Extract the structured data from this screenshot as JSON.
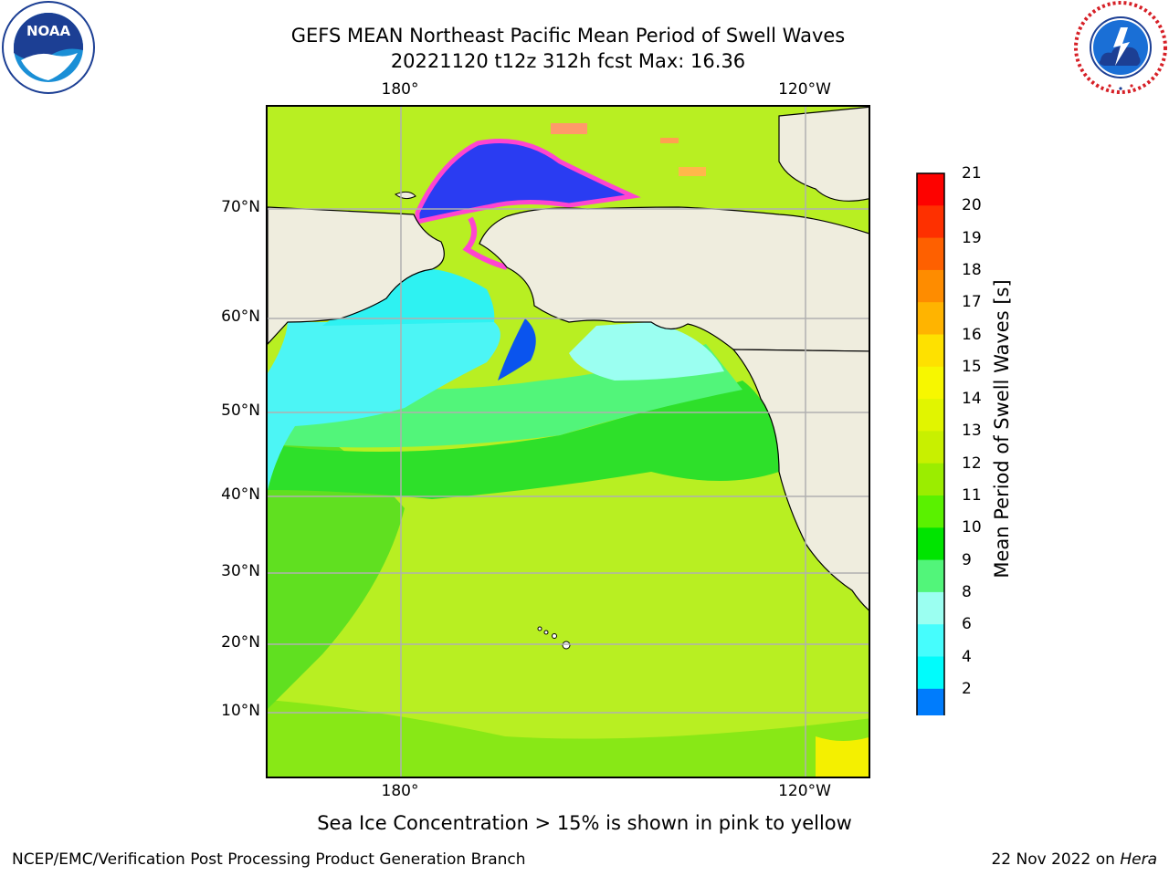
{
  "title": {
    "line1": "GEFS MEAN Northeast Pacific Mean Period of Swell Waves",
    "line2": "20221120 t12z 312h fcst   Max: 16.36"
  },
  "map": {
    "lon_labels_top": [
      "180°",
      "120°W"
    ],
    "lon_labels_bottom": [
      "180°",
      "120°W"
    ],
    "lat_labels": [
      "70°N",
      "60°N",
      "50°N",
      "40°N",
      "30°N",
      "20°N",
      "10°N"
    ],
    "land_color": "#efedde",
    "grid_color": "#b0b0b0"
  },
  "colorbar": {
    "label": "Mean Period of Swell Waves [s]",
    "ticks": [
      "21",
      "20",
      "19",
      "18",
      "17",
      "16",
      "15",
      "14",
      "13",
      "12",
      "11",
      "10",
      "9",
      "8",
      "6",
      "4",
      "2"
    ],
    "colors": [
      "#fd0200",
      "#fe3000",
      "#fe6000",
      "#fe8c00",
      "#ffb400",
      "#fee100",
      "#f7f700",
      "#e1f500",
      "#c8f000",
      "#9bed00",
      "#5af100",
      "#00e400",
      "#52f57a",
      "#9bfff1",
      "#46fdfd",
      "#00fcfc",
      "#007cfc",
      "#0011ef"
    ]
  },
  "notes": {
    "sea_ice": "Sea Ice Concentration > 15% is shown in pink to yellow",
    "credit_left": "NCEP/EMC/Verification Post Processing Product Generation Branch",
    "credit_date": "22 Nov 2022 on",
    "credit_host": "Hera"
  },
  "logos": {
    "left": "noaa-logo",
    "right": "nws-logo",
    "noaa_text": "NOAA"
  }
}
